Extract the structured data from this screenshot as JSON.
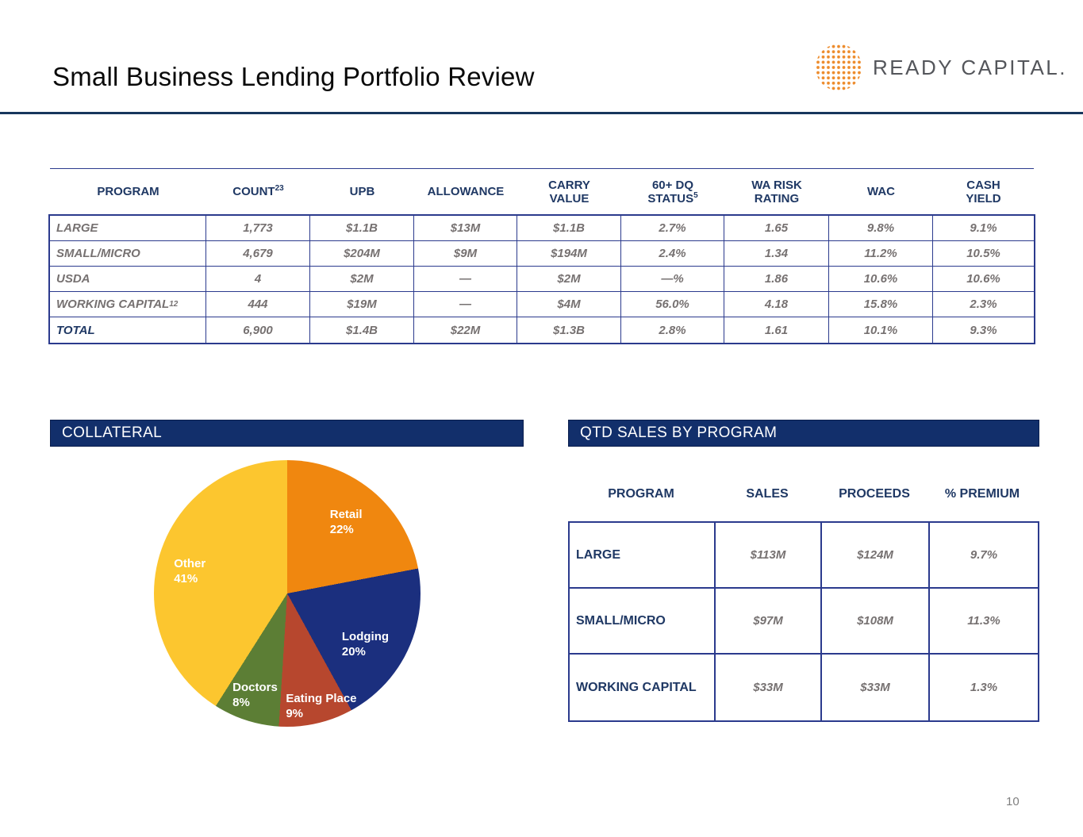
{
  "slide": {
    "title": "Small Business Lending Portfolio Review",
    "logo_text": "READY CAPITAL.",
    "page_number": "10"
  },
  "colors": {
    "navy_bar": "#122F6B",
    "navy_text": "#1F3864",
    "table_border": "#2B3A8D",
    "value_gray": "#767171",
    "title_rule": "#17365D",
    "logo_orange": "#ED8B2B",
    "logo_gray": "#54565B"
  },
  "portfolio_table": {
    "headers": [
      {
        "l1": "PROGRAM"
      },
      {
        "l1": "COUNT",
        "s1": "23"
      },
      {
        "l1": "UPB"
      },
      {
        "l1": "ALLOWANCE"
      },
      {
        "l1": "CARRY",
        "l2": "VALUE"
      },
      {
        "l1": "60+ DQ",
        "l2": "STATUS",
        "s2": "5"
      },
      {
        "l1": "WA RISK",
        "l2": "RATING"
      },
      {
        "l1": "WAC"
      },
      {
        "l1": "CASH",
        "l2": "YIELD"
      }
    ],
    "rows": [
      {
        "label": "LARGE",
        "cells": [
          "1,773",
          "$1.1B",
          "$13M",
          "$1.1B",
          "2.7%",
          "1.65",
          "9.8%",
          "9.1%"
        ]
      },
      {
        "label": "SMALL/MICRO",
        "cells": [
          "4,679",
          "$204M",
          "$9M",
          "$194M",
          "2.4%",
          "1.34",
          "11.2%",
          "10.5%"
        ]
      },
      {
        "label": "USDA",
        "cells": [
          "4",
          "$2M",
          "—",
          "$2M",
          "—%",
          "1.86",
          "10.6%",
          "10.6%"
        ]
      },
      {
        "label": "WORKING CAPITAL",
        "label_sup": "12",
        "cells": [
          "444",
          "$19M",
          "—",
          "$4M",
          "56.0%",
          "4.18",
          "15.8%",
          "2.3%"
        ]
      },
      {
        "label": "TOTAL",
        "cells": [
          "6,900",
          "$1.4B",
          "$22M",
          "$1.3B",
          "2.8%",
          "1.61",
          "10.1%",
          "9.3%"
        ]
      }
    ]
  },
  "collateral": {
    "section_title": "COLLATERAL"
  },
  "chart_data": {
    "type": "pie",
    "title": "COLLATERAL",
    "start_angle_deg": 0,
    "direction": "clockwise",
    "slices": [
      {
        "label": "Retail",
        "value": 22,
        "pct_label": "22%",
        "color": "#F0870F"
      },
      {
        "label": "Lodging",
        "value": 20,
        "pct_label": "20%",
        "color": "#1B2F7E"
      },
      {
        "label": "Eating Place",
        "value": 9,
        "pct_label": "9%",
        "color": "#B7472E"
      },
      {
        "label": "Doctors",
        "value": 8,
        "pct_label": "8%",
        "color": "#5C7E35"
      },
      {
        "label": "Other",
        "value": 41,
        "pct_label": "41%",
        "color": "#FCC62F"
      }
    ]
  },
  "qtd_sales": {
    "section_title": "QTD SALES BY PROGRAM",
    "headers": [
      "PROGRAM",
      "SALES",
      "PROCEEDS",
      "% PREMIUM"
    ],
    "rows": [
      {
        "program": "LARGE",
        "cells": [
          "$113M",
          "$124M",
          "9.7%"
        ]
      },
      {
        "program": "SMALL/MICRO",
        "cells": [
          "$97M",
          "$108M",
          "11.3%"
        ]
      },
      {
        "program": "WORKING CAPITAL",
        "cells": [
          "$33M",
          "$33M",
          "1.3%"
        ]
      }
    ]
  }
}
